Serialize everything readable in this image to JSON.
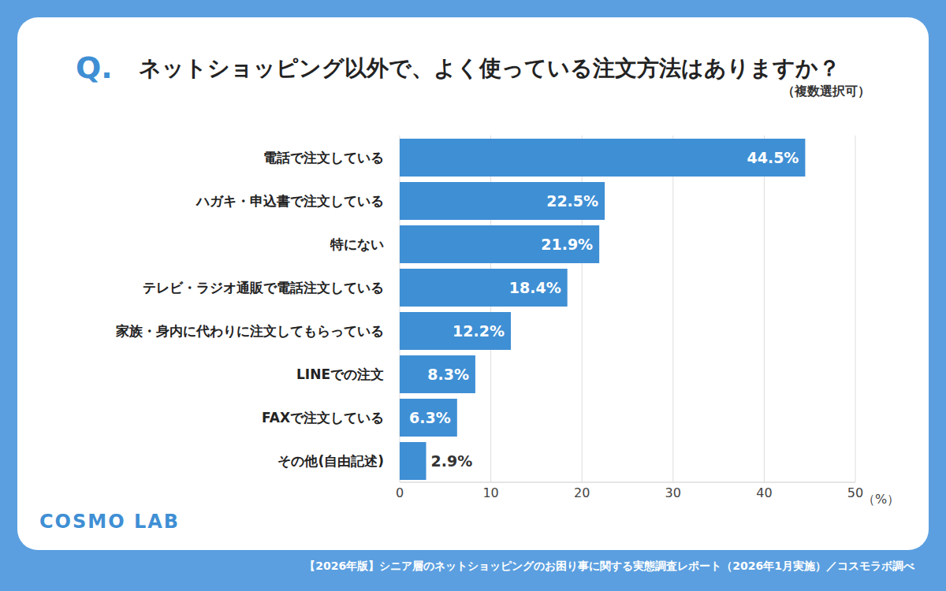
{
  "chart_data": {
    "type": "bar",
    "orientation": "horizontal",
    "question_label": "Q.",
    "title": "ネットショッピング以外で、よく使っている注文方法はありますか？",
    "subtitle": "（複数選択可）",
    "x_label": "（%）",
    "categories": [
      "電話で注文している",
      "ハガキ・申込書で注文している",
      "特にない",
      "テレビ・ラジオ通販で電話注文している",
      "家族・身内に代わりに注文してもらっている",
      "LINEでの注文",
      "FAXで注文している",
      "その他(自由記述)"
    ],
    "values": [
      44.5,
      22.5,
      21.9,
      18.4,
      12.2,
      8.3,
      6.3,
      2.9
    ],
    "value_labels": [
      "44.5%",
      "22.5%",
      "21.9%",
      "18.4%",
      "12.2%",
      "8.3%",
      "6.3%",
      "2.9%"
    ],
    "data_labels": true,
    "color": "#3f8fd4",
    "xlim": [
      0,
      50
    ],
    "xticks": [
      0,
      10,
      20,
      30,
      40,
      50
    ],
    "grid": true,
    "logo": "COSMO LAB",
    "source": "【2026年版】シニア層のネットショッピングのお困り事に関する実態調査レポート（2026年1月実施）／コスモラボ調べ"
  }
}
